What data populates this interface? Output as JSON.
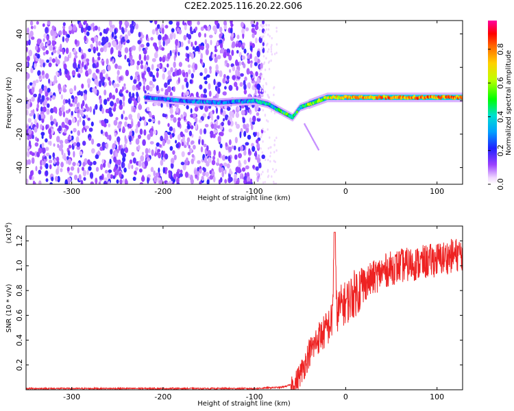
{
  "title": "C2E2.2025.116.20.22.G06",
  "chart_data": [
    {
      "type": "heatmap",
      "xlabel": "Height of straight line (km)",
      "ylabel": "Frequency (Hz)",
      "xlim": [
        -350,
        128
      ],
      "ylim": [
        -50,
        48
      ],
      "xticks": [
        -300,
        -200,
        -100,
        0,
        100
      ],
      "yticks": [
        -40,
        -20,
        0,
        20,
        40
      ],
      "colorbar": {
        "label": "Normalized spectral amplitude",
        "range": [
          0,
          0.97
        ],
        "ticks": [
          "0.0",
          "0.2",
          "0.4",
          "0.6",
          "0.8"
        ],
        "tick_values": [
          0,
          0.2,
          0.4,
          0.6,
          0.8
        ]
      },
      "noise_region": {
        "x_range": [
          -350,
          -90
        ],
        "freq_range": [
          -50,
          48
        ]
      },
      "signal_trace": {
        "x": [
          -220,
          -180,
          -140,
          -100,
          -85,
          -75,
          -65,
          -58,
          -50,
          -40,
          -30,
          -20,
          -10,
          0,
          50,
          128
        ],
        "freq": [
          2,
          0,
          -1,
          0,
          -2,
          -5,
          -8,
          -10,
          -4,
          -2,
          0,
          2,
          2,
          2,
          2,
          2
        ],
        "amplitude": [
          0.3,
          0.3,
          0.3,
          0.35,
          0.4,
          0.45,
          0.5,
          0.5,
          0.45,
          0.55,
          0.6,
          0.65,
          0.7,
          0.75,
          0.8,
          0.8
        ]
      }
    },
    {
      "type": "line",
      "xlabel": "Height of straight line (km)",
      "ylabel": "SNR (10 * v/v)",
      "y_multiplier": "(x10",
      "y_multiplier_exp": "4",
      "y_multiplier_close": ")",
      "xlim": [
        -350,
        128
      ],
      "ylim": [
        0,
        1.32
      ],
      "xticks": [
        -300,
        -200,
        -100,
        0,
        100
      ],
      "yticks": [
        0.2,
        0.4,
        0.6,
        0.8,
        1.0,
        1.2
      ],
      "ytick_labels": [
        "0.2",
        "0.4",
        "0.6",
        "0.8",
        "1.0",
        "1.2"
      ],
      "color": "#ee2222",
      "series": [
        {
          "x": [
            -350,
            -300,
            -200,
            -100,
            -70,
            -55,
            -45,
            -40,
            -35,
            -30,
            -25,
            -20,
            -15,
            -12,
            -10,
            -5,
            0,
            10,
            20,
            30,
            40,
            50,
            60,
            80,
            100,
            128
          ],
          "values": [
            0.01,
            0.01,
            0.01,
            0.01,
            0.02,
            0.05,
            0.2,
            0.3,
            0.35,
            0.42,
            0.45,
            0.5,
            0.55,
            1.27,
            0.62,
            0.68,
            0.7,
            0.78,
            0.85,
            0.9,
            0.95,
            0.98,
            1.0,
            1.02,
            1.05,
            1.1
          ]
        }
      ]
    }
  ]
}
